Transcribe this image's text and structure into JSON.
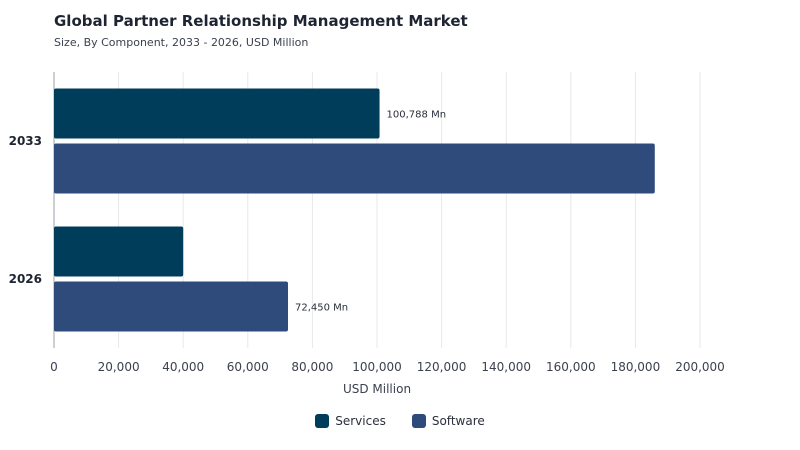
{
  "title": "Global Partner Relationship Management Market",
  "subtitle": "Size, By Component, 2033 - 2026, USD Million",
  "chart_data": {
    "type": "bar",
    "orientation": "horizontal",
    "categories": [
      "2033",
      "2026"
    ],
    "series": [
      {
        "name": "Services",
        "color": "#003d5b",
        "values": [
          100788,
          40000
        ]
      },
      {
        "name": "Software",
        "color": "#2f4b7c",
        "values": [
          186000,
          72450
        ]
      }
    ],
    "data_labels": [
      {
        "category": "2033",
        "series": "Services",
        "text": "100,788 Mn"
      },
      {
        "category": "2026",
        "series": "Software",
        "text": "72,450 Mn"
      }
    ],
    "xlabel": "USD Million",
    "ylabel": "",
    "xlim": [
      0,
      200000
    ],
    "x_ticks": [
      0,
      20000,
      40000,
      60000,
      80000,
      100000,
      120000,
      140000,
      160000,
      180000,
      200000
    ],
    "x_tick_labels": [
      "0",
      "20,000",
      "40,000",
      "60,000",
      "80,000",
      "100,000",
      "120,000",
      "140,000",
      "160,000",
      "180,000",
      "200,000"
    ],
    "grid": true,
    "legend_position": "bottom-center"
  }
}
